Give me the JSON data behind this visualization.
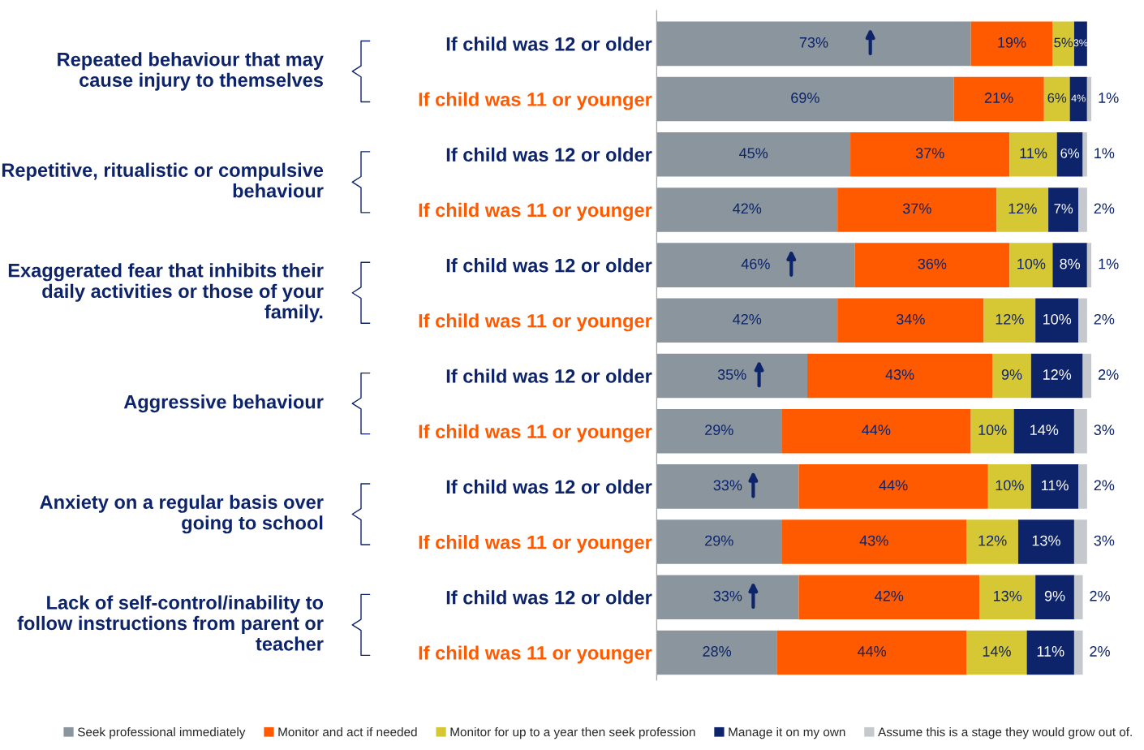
{
  "chart_data": {
    "type": "bar",
    "orientation": "horizontal",
    "stacked": true,
    "legend": "bottom",
    "grid": false,
    "tick_labels": "y",
    "xlim": [
      0,
      101
    ],
    "categories": [
      "If child was 12 or older",
      "If child was 11 or younger",
      "If child was 12 or older",
      "If child was 11 or younger",
      "If child was 12 or older",
      "If child was 11 or younger",
      "If child was 12 or older",
      "If child was 11 or younger",
      "If child was 12 or older",
      "If child was 11 or younger",
      "If child was 12 or older",
      "If child was 11 or younger"
    ],
    "annotations": [
      "Repeated behaviour that may cause injury to themselves",
      "Repetitive, ritualistic or compulsive behaviour",
      "Exaggerated fear that inhibits their daily activities or those of your family.",
      "Aggressive behaviour",
      "Anxiety on a regular basis over going to school",
      "Lack of self-control/inability to follow instructions from parent or teacher"
    ],
    "series": [
      {
        "name": "Seek professional immediately",
        "color": "#8a959e",
        "values": [
          73,
          69,
          45,
          42,
          46,
          42,
          35,
          29,
          33,
          29,
          33,
          28
        ],
        "value_labels": [
          "73%",
          "69%",
          "45%",
          "42%",
          "46%",
          "42%",
          "35%",
          "29%",
          "33%",
          "29%",
          "33%",
          "28%"
        ]
      },
      {
        "name": "Monitor and act if needed",
        "color": "#ff5a00",
        "values": [
          19,
          21,
          37,
          37,
          36,
          34,
          43,
          44,
          44,
          43,
          42,
          44
        ],
        "value_labels": [
          "19%",
          "21%",
          "37%",
          "37%",
          "36%",
          "34%",
          "43%",
          "44%",
          "44%",
          "43%",
          "42%",
          "44%"
        ]
      },
      {
        "name": "Monitor for up to a year then seek profession",
        "color": "#d6c734",
        "values": [
          5,
          6,
          11,
          12,
          10,
          12,
          9,
          10,
          10,
          12,
          13,
          14
        ],
        "value_labels": [
          "5%",
          "6%",
          "11%",
          "12%",
          "10%",
          "12%",
          "9%",
          "10%",
          "10%",
          "12%",
          "13%",
          "14%"
        ]
      },
      {
        "name": "Manage it on my own",
        "color": "#0d246b",
        "values": [
          3,
          4,
          6,
          7,
          8,
          10,
          12,
          14,
          11,
          13,
          9,
          11
        ],
        "value_labels": [
          "3%",
          "4%",
          "6%",
          "7%",
          "8%",
          "10%",
          "12%",
          "14%",
          "11%",
          "13%",
          "9%",
          "11%"
        ]
      },
      {
        "name": "Assume this is a stage they would grow out of.",
        "color": "#c5c9cd",
        "values": [
          0,
          1,
          1,
          2,
          1,
          2,
          2,
          3,
          2,
          3,
          2,
          2
        ],
        "value_labels": [
          null,
          "1%",
          "1%",
          "2%",
          "1%",
          "2%",
          "2%",
          "3%",
          "2%",
          "3%",
          "2%",
          "2%"
        ]
      }
    ]
  }
}
